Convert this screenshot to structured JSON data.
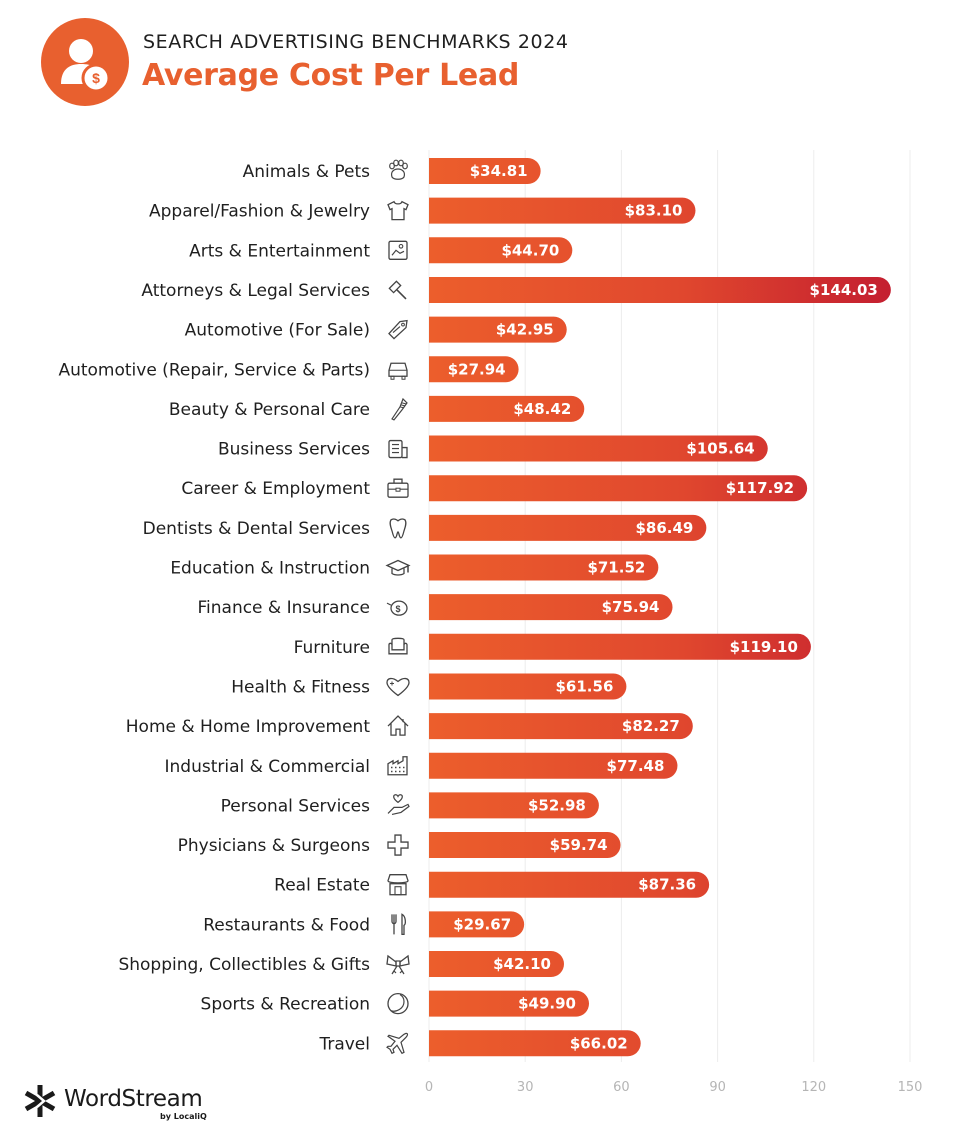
{
  "header": {
    "icon": "person-dollar-icon",
    "subtitle": "SEARCH ADVERTISING BENCHMARKS 2024",
    "title": "Average Cost Per Lead"
  },
  "brand": {
    "logo_icon": "wordstream-asterisk-icon",
    "name": "WordStream",
    "byline": "by LocaliQ"
  },
  "colors": {
    "accent": "#e8602f",
    "bar_start": "#ec5e2c",
    "bar_end": "#c41f30",
    "grid": "#ececec",
    "tick": "#b5b5b5",
    "label": "#1f1f1f"
  },
  "chart_data": {
    "type": "bar",
    "orientation": "horizontal",
    "title": "Average Cost Per Lead",
    "subtitle": "SEARCH ADVERTISING BENCHMARKS 2024",
    "xlabel": "",
    "ylabel": "",
    "xlim": [
      0,
      150
    ],
    "xticks": [
      0,
      30,
      60,
      90,
      120,
      150
    ],
    "grid": true,
    "value_prefix": "$",
    "categories": [
      "Animals & Pets",
      "Apparel/Fashion & Jewelry",
      "Arts & Entertainment",
      "Attorneys & Legal Services",
      "Automotive (For Sale)",
      "Automotive (Repair, Service & Parts)",
      "Beauty & Personal Care",
      "Business Services",
      "Career & Employment",
      "Dentists & Dental Services",
      "Education & Instruction",
      "Finance & Insurance",
      "Furniture",
      "Health & Fitness",
      "Home & Home Improvement",
      "Industrial & Commercial",
      "Personal Services",
      "Physicians & Surgeons",
      "Real Estate",
      "Restaurants & Food",
      "Shopping, Collectibles & Gifts",
      "Sports & Recreation",
      "Travel"
    ],
    "icons": [
      "paw-icon",
      "tshirt-icon",
      "picture-icon",
      "gavel-icon",
      "price-tag-icon",
      "car-icon",
      "comb-icon",
      "document-icon",
      "briefcase-icon",
      "tooth-icon",
      "graduation-cap-icon",
      "piggy-bank-icon",
      "armchair-icon",
      "heart-plus-icon",
      "house-icon",
      "factory-icon",
      "hand-heart-icon",
      "medical-cross-icon",
      "storefront-icon",
      "fork-knife-icon",
      "bow-icon",
      "ball-icon",
      "airplane-icon"
    ],
    "values": [
      34.81,
      83.1,
      44.7,
      144.03,
      42.95,
      27.94,
      48.42,
      105.64,
      117.92,
      86.49,
      71.52,
      75.94,
      119.1,
      61.56,
      82.27,
      77.48,
      52.98,
      59.74,
      87.36,
      29.67,
      42.1,
      49.9,
      66.02
    ],
    "value_labels": [
      "$34.81",
      "$83.10",
      "$44.70",
      "$144.03",
      "$42.95",
      "$27.94",
      "$48.42",
      "$105.64",
      "$117.92",
      "$86.49",
      "$71.52",
      "$75.94",
      "$119.10",
      "$61.56",
      "$82.27",
      "$77.48",
      "$52.98",
      "$59.74",
      "$87.36",
      "$29.67",
      "$42.10",
      "$49.90",
      "$66.02"
    ]
  }
}
